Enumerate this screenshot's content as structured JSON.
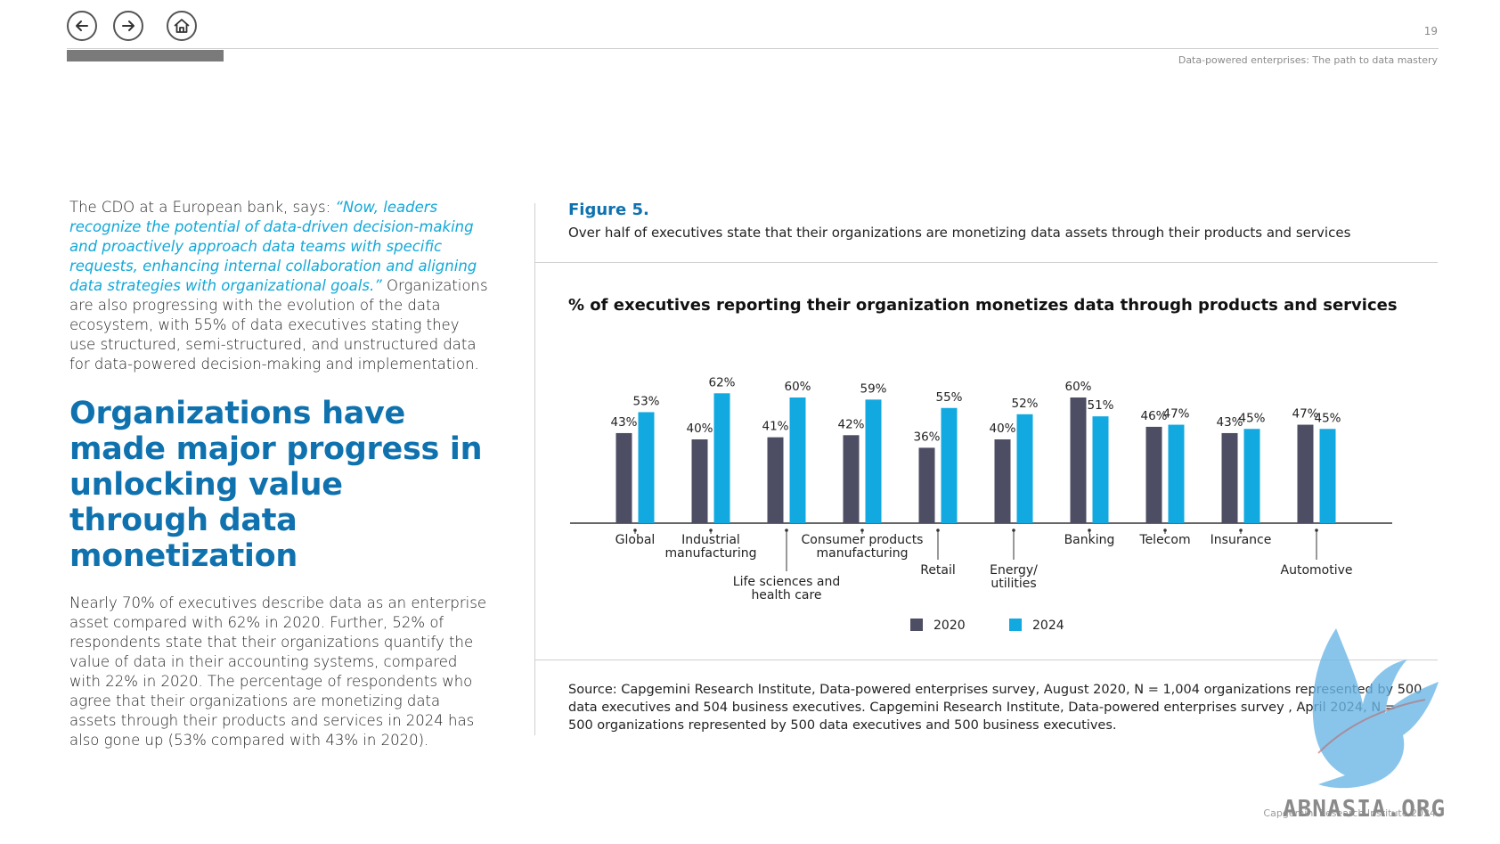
{
  "header": {
    "page_number": "19",
    "doc_title": "Data-powered enterprises: The path to data mastery"
  },
  "nav": {
    "back_icon": "arrow-left-icon",
    "forward_icon": "arrow-right-icon",
    "home_icon": "home-icon"
  },
  "left": {
    "intro_prefix": "The CDO at a European bank, says: ",
    "intro_quote": "“Now, leaders recognize the potential of data-driven decision-making and proactively approach data teams with specific requests, enhancing internal collaboration and aligning data strategies with organizational goals.”",
    "intro_suffix": " Organizations are also progressing with the evolution of the data ecosystem, with 55% of data executives stating they use structured, semi-structured, and unstructured data for data-powered decision-making and implementation.",
    "headline": "Organizations have made major progress in unlocking value through data monetization",
    "body": "Nearly 70% of executives describe data as an enterprise asset compared with 62% in 2020. Further, 52% of respondents state that their organizations quantify the value of data in their accounting systems, compared with 22% in 2020. The percentage of respondents who agree that their organizations are monetizing data assets through their products and services in 2024 has also gone up (53% compared with 43% in 2020)."
  },
  "figure": {
    "label": "Figure 5.",
    "subtitle": "Over half of executives state that their organizations are monetizing data assets through their products and services",
    "source": "Source: Capgemini Research Institute, Data-powered enterprises survey, August 2020, N = 1,004 organizations represented by 500 data executives and 504 business executives. Capgemini Research Institute, Data-powered enterprises survey , April 2024, N = 500 organizations represented by 500 data executives and 500 business executives."
  },
  "chart_data": {
    "type": "bar",
    "title": "% of executives reporting their organization monetizes data through products and services",
    "categories": [
      "Global",
      "Industrial manufacturing",
      "Life sciences and health care",
      "Consumer products manufacturing",
      "Retail",
      "Energy/ utilities",
      "Banking",
      "Telecom",
      "Insurance",
      "Automotive"
    ],
    "category_lines": [
      [
        "Global"
      ],
      [
        "Industrial",
        "manufacturing"
      ],
      [
        "Life sciences and",
        "health care"
      ],
      [
        "Consumer products",
        "manufacturing"
      ],
      [
        "Retail"
      ],
      [
        "Energy/",
        "utilities"
      ],
      [
        "Banking"
      ],
      [
        "Telecom"
      ],
      [
        "Insurance"
      ],
      [
        "Automotive"
      ]
    ],
    "label_level": [
      "near",
      "near",
      "far",
      "near",
      "mid",
      "mid",
      "near",
      "near",
      "near",
      "mid"
    ],
    "series": [
      {
        "name": "2020",
        "values": [
          43,
          40,
          41,
          42,
          36,
          40,
          60,
          46,
          43,
          47
        ],
        "color": "#4d4d63"
      },
      {
        "name": "2024",
        "values": [
          53,
          62,
          60,
          59,
          55,
          52,
          51,
          47,
          45,
          45
        ],
        "color": "#12a8e0"
      }
    ],
    "value_labels": [
      "43%",
      "40%",
      "41%",
      "42%",
      "36%",
      "40%",
      "60%",
      "46%",
      "43%",
      "47%",
      "53%",
      "62%",
      "60%",
      "59%",
      "55%",
      "52%",
      "51%",
      "47%",
      "45%",
      "45%"
    ],
    "ylim": [
      0,
      70
    ],
    "grid": false,
    "legend_position": "bottom-center"
  },
  "footer": {
    "text": "Capgemini Research Institute 2024"
  },
  "watermark": {
    "text": "ABNASIA.ORG"
  }
}
